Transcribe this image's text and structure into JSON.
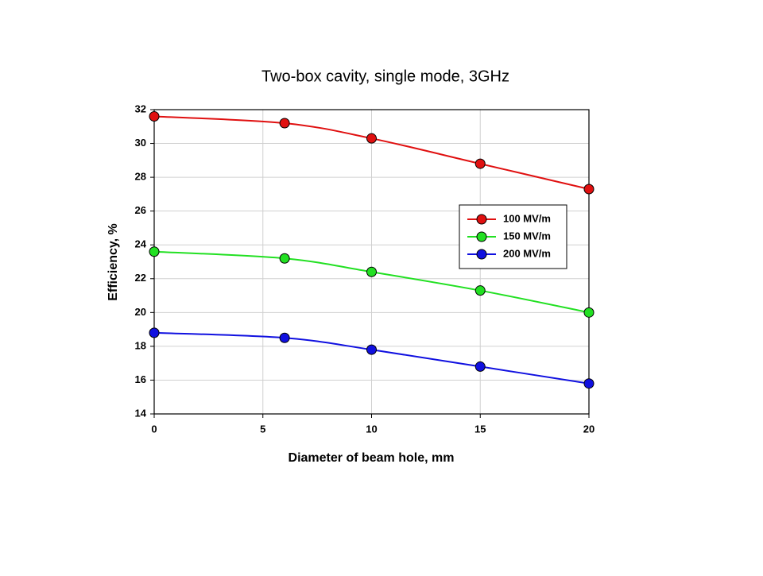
{
  "chart_data": {
    "type": "line",
    "title": "Two-box cavity, single mode, 3GHz",
    "x_label": "Diameter of beam hole, mm",
    "y_label": "Efficiency, %",
    "x": [
      0,
      6,
      10,
      15,
      20
    ],
    "series": [
      {
        "name": "100 MV/m",
        "color": "#e01010",
        "values": [
          31.6,
          31.2,
          30.3,
          28.8,
          27.3
        ]
      },
      {
        "name": "150 MV/m",
        "color": "#22e022",
        "values": [
          23.6,
          23.2,
          22.4,
          21.3,
          20.0
        ]
      },
      {
        "name": "200 MV/m",
        "color": "#1010e0",
        "values": [
          18.8,
          18.5,
          17.8,
          16.8,
          15.8
        ]
      }
    ],
    "xlim": [
      0,
      20
    ],
    "xticks": [
      0,
      5,
      10,
      15,
      20
    ],
    "ylim": [
      14,
      32
    ],
    "yticks": [
      14,
      16,
      18,
      20,
      22,
      24,
      26,
      28,
      30,
      32
    ],
    "grid": true,
    "smooth": true
  }
}
